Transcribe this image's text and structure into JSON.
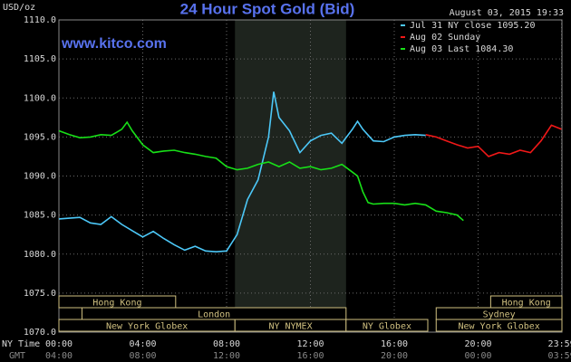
{
  "chart_data": {
    "type": "line",
    "title": "24 Hour Spot Gold (Bid)",
    "y_label": "USD/oz",
    "timestamp": "August 03, 2015 19:33",
    "watermark": "www.kitco.com",
    "x_row_labels": [
      "NY Time",
      "GMT"
    ],
    "xlim": [
      0,
      24
    ],
    "xticks": [
      {
        "value": 0,
        "label": "00:00"
      },
      {
        "value": 4,
        "label": "04:00"
      },
      {
        "value": 8,
        "label": "08:00"
      },
      {
        "value": 12,
        "label": "12:00"
      },
      {
        "value": 16,
        "label": "16:00"
      },
      {
        "value": 20,
        "label": "20:00"
      },
      {
        "value": 23.983,
        "label": "23:59"
      }
    ],
    "gmt_labels": [
      "04:00",
      "08:00",
      "12:00",
      "16:00",
      "20:00",
      "00:00",
      "03:59"
    ],
    "ylim": [
      1070,
      1110
    ],
    "yticks": [
      {
        "value": 1070,
        "label": "1070.0"
      },
      {
        "value": 1075,
        "label": "1075.0"
      },
      {
        "value": 1080,
        "label": "1080.0"
      },
      {
        "value": 1085,
        "label": "1085.0"
      },
      {
        "value": 1090,
        "label": "1090.0"
      },
      {
        "value": 1095,
        "label": "1095.0"
      },
      {
        "value": 1100,
        "label": "1100.0"
      },
      {
        "value": 1105,
        "label": "1105.0"
      },
      {
        "value": 1110,
        "label": "1110.0"
      }
    ],
    "grid": true,
    "shaded_x": [
      8.4,
      13.7
    ],
    "shade_color": "#1e241e",
    "session_rows": [
      [
        {
          "label": "Hong Kong",
          "start": 0,
          "end": 5.57
        },
        {
          "label": "Hong Kong",
          "start": 20.6,
          "end": 24
        }
      ],
      [
        {
          "label": "London",
          "start": 1.1,
          "end": 13.7
        },
        {
          "label": "Sydney",
          "start": 18.0,
          "end": 24
        }
      ],
      [
        {
          "label": "New York Globex",
          "start": 0,
          "end": 8.4
        },
        {
          "label": "NY NYMEX",
          "start": 8.4,
          "end": 13.7
        },
        {
          "label": "NY Globex",
          "start": 13.7,
          "end": 17.6
        },
        {
          "label": "New York Globex",
          "start": 18.0,
          "end": 24
        }
      ]
    ],
    "series": [
      {
        "name": "Jul 31 NY close 1095.20",
        "color": "#4cc8f8",
        "x": [
          0,
          0.5,
          1,
          1.5,
          2,
          2.5,
          3,
          3.5,
          4,
          4.5,
          5,
          5.5,
          6,
          6.5,
          7,
          7.5,
          8,
          8.5,
          9,
          9.5,
          10,
          10.25,
          10.5,
          11,
          11.5,
          12,
          12.5,
          13,
          13.5,
          14,
          14.25,
          14.5,
          15,
          15.5,
          16,
          16.5,
          17,
          17.5
        ],
        "values": [
          1084.5,
          1084.6,
          1084.7,
          1084.0,
          1083.8,
          1084.8,
          1083.8,
          1083.0,
          1082.2,
          1082.9,
          1082.0,
          1081.2,
          1080.5,
          1081.0,
          1080.4,
          1080.3,
          1080.4,
          1082.5,
          1087.0,
          1089.5,
          1095.0,
          1100.8,
          1097.5,
          1095.8,
          1093.0,
          1094.5,
          1095.2,
          1095.5,
          1094.2,
          1096.0,
          1097.0,
          1096.0,
          1094.5,
          1094.4,
          1095.0,
          1095.2,
          1095.3,
          1095.2
        ]
      },
      {
        "name": "Aug 02 Sunday",
        "color": "#f01818",
        "x": [
          17.5,
          18,
          18.5,
          19,
          19.5,
          20,
          20.5,
          21,
          21.5,
          22,
          22.5,
          23,
          23.5,
          23.98
        ],
        "values": [
          1095.3,
          1095.0,
          1094.5,
          1094.0,
          1093.6,
          1093.8,
          1092.5,
          1093.0,
          1092.8,
          1093.3,
          1093.0,
          1094.5,
          1096.5,
          1096.0
        ]
      },
      {
        "name": "Aug 03 Last 1084.30",
        "color": "#18e018",
        "x": [
          0,
          0.5,
          1,
          1.5,
          2,
          2.5,
          3,
          3.25,
          3.5,
          4,
          4.5,
          5,
          5.5,
          6,
          6.5,
          7,
          7.5,
          8,
          8.5,
          9,
          9.5,
          10,
          10.5,
          11,
          11.5,
          12,
          12.5,
          13,
          13.5,
          14,
          14.25,
          14.5,
          14.75,
          15,
          15.5,
          16,
          16.5,
          17,
          17.5,
          18,
          18.5,
          19,
          19.3
        ],
        "values": [
          1095.8,
          1095.3,
          1094.9,
          1095.0,
          1095.3,
          1095.2,
          1096.0,
          1096.9,
          1095.8,
          1094.0,
          1093.0,
          1093.2,
          1093.3,
          1093.0,
          1092.8,
          1092.5,
          1092.3,
          1091.2,
          1090.8,
          1091.0,
          1091.5,
          1091.8,
          1091.2,
          1091.8,
          1091.0,
          1091.2,
          1090.8,
          1091.0,
          1091.5,
          1090.5,
          1090.0,
          1088.0,
          1086.6,
          1086.4,
          1086.5,
          1086.5,
          1086.3,
          1086.5,
          1086.3,
          1085.5,
          1085.3,
          1085.0,
          1084.3
        ]
      }
    ]
  }
}
